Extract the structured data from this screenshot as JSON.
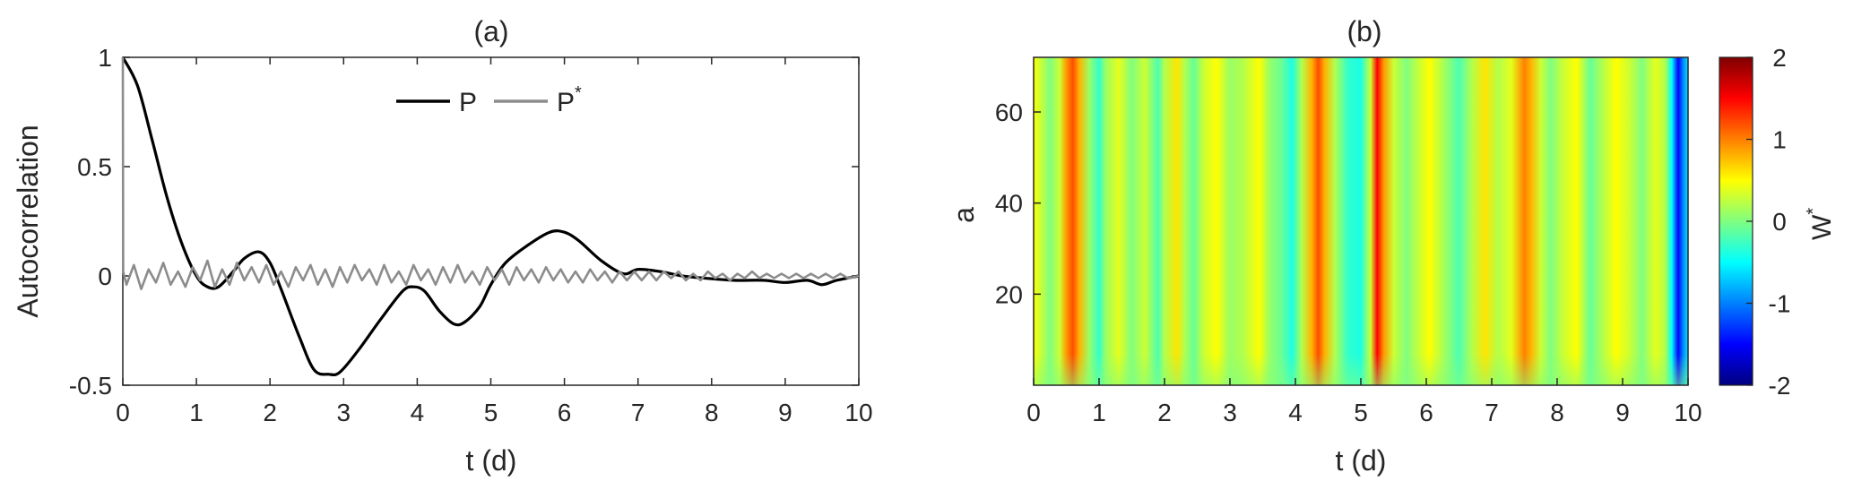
{
  "chart_data": [
    {
      "type": "line",
      "panel_label": "(a)",
      "xlabel": "t (d)",
      "ylabel": "Autocorrelation",
      "xlim": [
        0,
        10
      ],
      "ylim": [
        -0.5,
        1
      ],
      "xticks": [
        "0",
        "1",
        "2",
        "3",
        "4",
        "5",
        "6",
        "7",
        "8",
        "9",
        "10"
      ],
      "yticks": [
        "-0.5",
        "0",
        "0.5",
        "1"
      ],
      "legend": {
        "placement": "top-center",
        "entries": [
          {
            "label": "P",
            "sup": "",
            "color": "#000000"
          },
          {
            "label": "P",
            "sup": "*",
            "color": "#8c8c8c"
          }
        ]
      },
      "series": [
        {
          "name": "P",
          "color": "#000000",
          "x": [
            0,
            0.2,
            0.4,
            0.6,
            0.8,
            1.0,
            1.15,
            1.3,
            1.5,
            1.65,
            1.85,
            2.0,
            2.15,
            2.4,
            2.6,
            2.8,
            2.95,
            3.2,
            3.5,
            3.8,
            3.95,
            4.1,
            4.3,
            4.5,
            4.65,
            4.85,
            5.0,
            5.2,
            5.5,
            5.8,
            6.0,
            6.2,
            6.5,
            6.8,
            7.0,
            7.3,
            7.6,
            7.9,
            8.3,
            8.7,
            9.0,
            9.3,
            9.5,
            9.7,
            10.0
          ],
          "y": [
            1.0,
            0.87,
            0.62,
            0.36,
            0.15,
            0.0,
            -0.05,
            -0.05,
            0.02,
            0.08,
            0.11,
            0.06,
            -0.06,
            -0.28,
            -0.43,
            -0.45,
            -0.44,
            -0.34,
            -0.2,
            -0.07,
            -0.05,
            -0.07,
            -0.16,
            -0.22,
            -0.21,
            -0.14,
            -0.04,
            0.06,
            0.14,
            0.2,
            0.2,
            0.16,
            0.07,
            0.01,
            0.03,
            0.02,
            0.0,
            -0.01,
            -0.02,
            -0.02,
            -0.03,
            -0.02,
            -0.04,
            -0.02,
            0.0
          ]
        },
        {
          "name": "P*",
          "color": "#8c8c8c",
          "x": [
            0,
            0.005,
            0.05,
            0.15,
            0.25,
            0.35,
            0.45,
            0.55,
            0.65,
            0.75,
            0.85,
            0.95,
            1.05,
            1.15,
            1.25,
            1.35,
            1.45,
            1.55,
            1.65,
            1.75,
            1.85,
            1.95,
            2.05,
            2.15,
            2.25,
            2.35,
            2.45,
            2.55,
            2.65,
            2.75,
            2.85,
            2.95,
            3.05,
            3.15,
            3.25,
            3.35,
            3.45,
            3.55,
            3.65,
            3.75,
            3.85,
            3.95,
            4.05,
            4.15,
            4.25,
            4.35,
            4.45,
            4.55,
            4.65,
            4.75,
            4.85,
            4.95,
            5.05,
            5.15,
            5.25,
            5.35,
            5.45,
            5.55,
            5.65,
            5.75,
            5.85,
            5.95,
            6.05,
            6.15,
            6.25,
            6.35,
            6.45,
            6.55,
            6.65,
            6.75,
            6.85,
            6.95,
            7.05,
            7.15,
            7.25,
            7.35,
            7.45,
            7.55,
            7.65,
            7.75,
            7.85,
            7.95,
            8.05,
            8.15,
            8.25,
            8.35,
            8.45,
            8.55,
            8.65,
            8.75,
            8.85,
            8.95,
            9.05,
            9.15,
            9.25,
            9.35,
            9.45,
            9.55,
            9.65,
            9.75,
            9.85,
            10.0
          ],
          "y": [
            1.0,
            0.02,
            -0.04,
            0.05,
            -0.06,
            0.03,
            -0.03,
            0.06,
            -0.04,
            0.02,
            -0.05,
            0.04,
            -0.02,
            0.07,
            -0.05,
            0.03,
            -0.04,
            0.06,
            -0.02,
            0.04,
            -0.03,
            0.05,
            -0.04,
            0.02,
            -0.05,
            0.04,
            -0.02,
            0.05,
            -0.04,
            0.03,
            -0.05,
            0.04,
            -0.03,
            0.05,
            -0.02,
            0.03,
            -0.04,
            0.05,
            -0.03,
            0.02,
            -0.04,
            0.05,
            -0.02,
            0.03,
            -0.04,
            0.04,
            -0.03,
            0.05,
            -0.03,
            0.02,
            -0.04,
            0.04,
            -0.02,
            0.03,
            -0.04,
            0.04,
            -0.02,
            0.03,
            -0.03,
            0.04,
            -0.02,
            0.03,
            -0.03,
            0.02,
            -0.03,
            0.03,
            -0.02,
            0.02,
            -0.03,
            0.02,
            -0.02,
            0.02,
            -0.02,
            0.02,
            -0.02,
            0.02,
            -0.01,
            0.02,
            -0.02,
            0.01,
            -0.02,
            0.02,
            -0.01,
            0.01,
            -0.02,
            0.01,
            -0.01,
            0.02,
            -0.01,
            0.01,
            -0.01,
            0.01,
            -0.01,
            0.01,
            -0.01,
            0.01,
            -0.01,
            0.01,
            -0.01,
            0.01,
            -0.01,
            0.0
          ]
        }
      ]
    },
    {
      "type": "heatmap",
      "panel_label": "(b)",
      "xlabel": "t (d)",
      "ylabel": "a",
      "xlim": [
        0,
        10
      ],
      "ylim": [
        0,
        72
      ],
      "xticks": [
        "0",
        "1",
        "2",
        "3",
        "4",
        "5",
        "6",
        "7",
        "8",
        "9",
        "10"
      ],
      "yticks": [
        "20",
        "40",
        "60"
      ],
      "colorbar": {
        "label": "W",
        "label_sup": "*",
        "range": [
          -2,
          2
        ],
        "ticks": [
          "-2",
          "-1",
          "0",
          "1",
          "2"
        ],
        "colormap": "jet"
      },
      "column_profile": {
        "t": [
          0.0,
          0.1,
          0.25,
          0.4,
          0.5,
          0.6,
          0.7,
          0.85,
          1.0,
          1.1,
          1.3,
          1.5,
          1.7,
          1.9,
          2.0,
          2.2,
          2.3,
          2.45,
          2.6,
          2.8,
          3.0,
          3.2,
          3.45,
          3.6,
          3.8,
          3.95,
          4.1,
          4.25,
          4.35,
          4.45,
          4.6,
          4.8,
          5.0,
          5.15,
          5.25,
          5.35,
          5.5,
          5.7,
          5.9,
          6.05,
          6.3,
          6.5,
          6.7,
          6.9,
          7.1,
          7.3,
          7.5,
          7.6,
          7.75,
          7.9,
          8.1,
          8.3,
          8.5,
          8.7,
          8.9,
          9.1,
          9.3,
          9.5,
          9.65,
          9.75,
          9.85,
          9.92,
          10.0
        ],
        "value": [
          0.5,
          0.3,
          0.0,
          0.3,
          0.9,
          1.2,
          0.8,
          0.1,
          -0.3,
          0.1,
          0.4,
          0.0,
          0.3,
          -0.2,
          0.2,
          0.6,
          0.2,
          -0.1,
          0.3,
          0.5,
          0.1,
          0.2,
          0.5,
          0.1,
          -0.1,
          -0.4,
          0.2,
          0.8,
          1.2,
          0.8,
          0.2,
          -0.3,
          -0.4,
          0.3,
          1.5,
          0.9,
          0.3,
          0.0,
          0.3,
          0.5,
          0.1,
          -0.2,
          0.2,
          0.6,
          0.2,
          0.4,
          1.0,
          0.8,
          0.3,
          0.0,
          0.3,
          0.5,
          -0.1,
          0.2,
          0.5,
          0.3,
          0.0,
          0.4,
          0.2,
          -0.5,
          -1.5,
          -1.0,
          -0.6
        ]
      }
    }
  ]
}
